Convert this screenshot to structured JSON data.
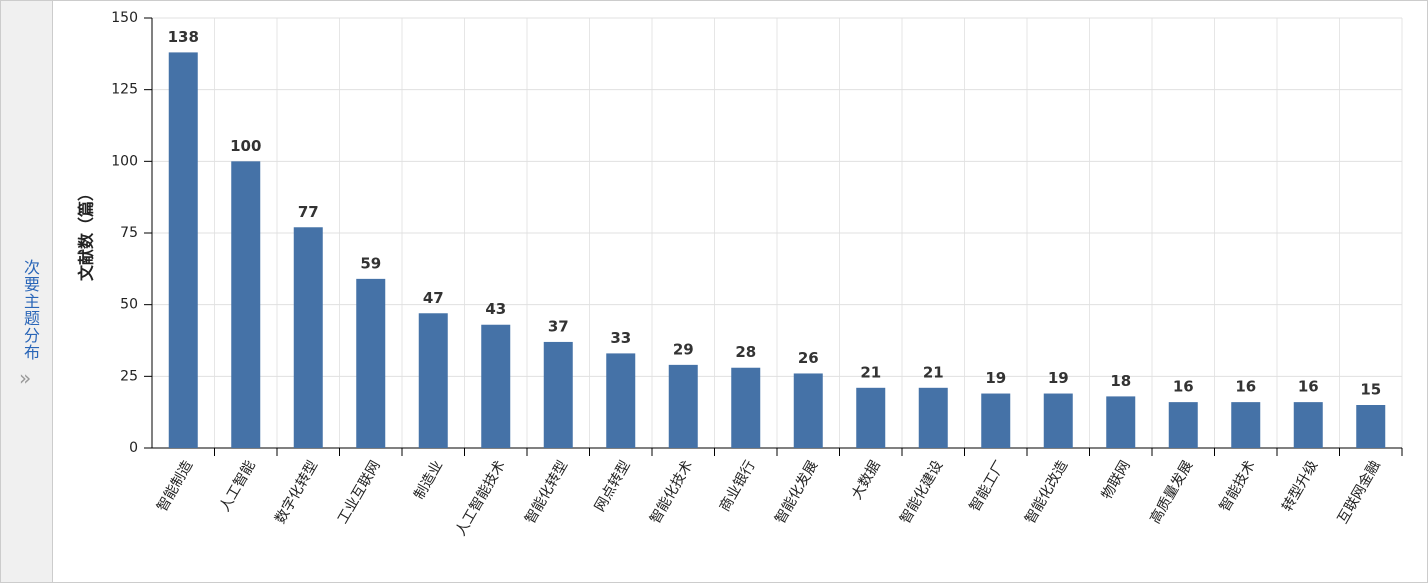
{
  "side_panel": {
    "label": "次要主题分布",
    "icon": "»"
  },
  "chart_data": {
    "type": "bar",
    "y_label": "文献数（篇）",
    "categories": [
      "智能制造",
      "人工智能",
      "数字化转型",
      "工业互联网",
      "制造业",
      "人工智能技术",
      "智能化转型",
      "网点转型",
      "智能化技术",
      "商业银行",
      "智能化发展",
      "大数据",
      "智能化建设",
      "智能工厂",
      "智能化改造",
      "物联网",
      "高质量发展",
      "智能技术",
      "转型升级",
      "互联网金融"
    ],
    "values": [
      138,
      100,
      77,
      59,
      47,
      43,
      37,
      33,
      29,
      28,
      26,
      21,
      21,
      19,
      19,
      18,
      16,
      16,
      16,
      15
    ],
    "color": "#4572a7",
    "ylim": [
      0,
      150
    ],
    "yticks": [
      0,
      25,
      50,
      75,
      100,
      125,
      150
    ],
    "grid": true
  }
}
